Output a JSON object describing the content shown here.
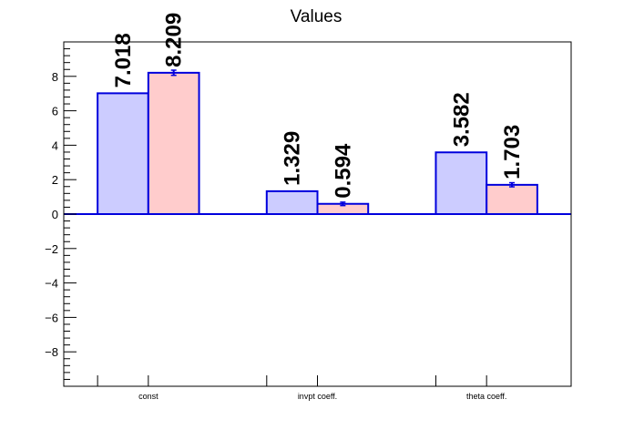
{
  "chart_data": {
    "type": "bar",
    "title": "Values",
    "xlabel": "",
    "ylabel": "",
    "categories": [
      "const",
      "invpt coeff.",
      "theta coeff."
    ],
    "series": [
      {
        "values": [
          7.018,
          1.329,
          3.582
        ],
        "errors": [
          0,
          0,
          0
        ],
        "fill": "#ccccff",
        "stroke": "#0000dd"
      },
      {
        "values": [
          8.209,
          0.594,
          1.703
        ],
        "errors": [
          0.15,
          0.1,
          0.12
        ],
        "fill": "#ffcccc",
        "stroke": "#0000dd"
      }
    ],
    "data_labels": [
      [
        "7.018",
        "1.329",
        "3.582"
      ],
      [
        "8.209",
        "0.594",
        "1.703"
      ]
    ],
    "ylim": [
      -10,
      10
    ],
    "yticks": [
      -8,
      -6,
      -4,
      -2,
      0,
      2,
      4,
      6,
      8
    ],
    "ytick_labels": [
      "−8",
      "−6",
      "−4",
      "−2",
      "0",
      "2",
      "4",
      "6",
      "8"
    ],
    "grid": false,
    "zero_line_color": "#0000dd"
  }
}
